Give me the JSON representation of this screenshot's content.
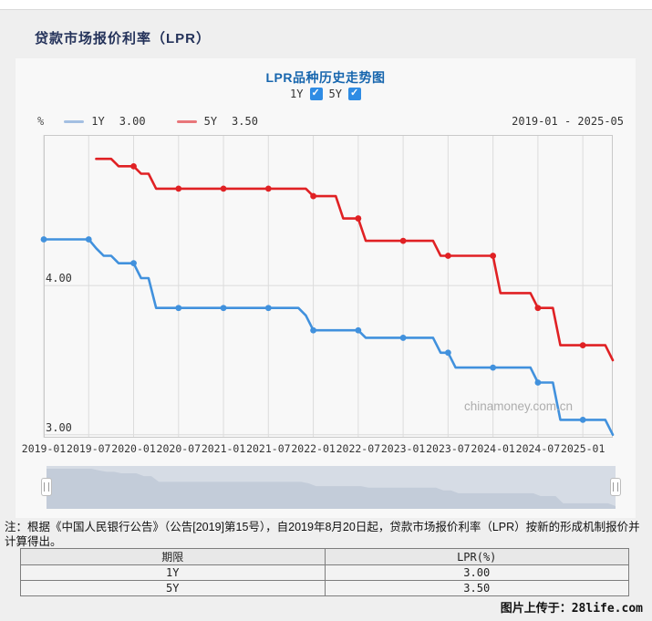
{
  "header": {
    "title": "贷款市场报价利率（LPR）"
  },
  "chart": {
    "title": "LPR品种历史走势图",
    "toggles": [
      {
        "label": "1Y",
        "checked": true
      },
      {
        "label": "5Y",
        "checked": true
      }
    ],
    "unit_label": "%",
    "legend": [
      {
        "name": "1Y",
        "value": "3.00",
        "swatch_color": "#a3bfe2"
      },
      {
        "name": "5Y",
        "value": "3.50",
        "swatch_color": "#e8767a"
      }
    ],
    "date_range": "2019-01 - 2025-05",
    "watermark": "chinamoney.com.cn"
  },
  "chart_data": {
    "type": "line",
    "title": "LPR品种历史走势图",
    "x_unit": "month",
    "x_start": "2019-01",
    "x_end": "2025-05",
    "x_tick_labels": [
      "2019-01",
      "2019-07",
      "2020-01",
      "2020-07",
      "2021-01",
      "2021-07",
      "2022-01",
      "2022-07",
      "2023-01",
      "2023-07",
      "2024-01",
      "2024-07",
      "2025-01"
    ],
    "y_tick_labels": [
      "4.00",
      "3.00"
    ],
    "y_gridline_values": [
      4.0,
      3.0
    ],
    "ylim": [
      2.98,
      5.01
    ],
    "marker_every_months": 6,
    "grid": true,
    "series": [
      {
        "name": "1Y",
        "color": "#4191dd",
        "start_month": "2019-01",
        "start_offset": 0,
        "monthly_values": [
          4.31,
          4.31,
          4.31,
          4.31,
          4.31,
          4.31,
          4.31,
          4.25,
          4.2,
          4.2,
          4.15,
          4.15,
          4.15,
          4.05,
          4.05,
          3.85,
          3.85,
          3.85,
          3.85,
          3.85,
          3.85,
          3.85,
          3.85,
          3.85,
          3.85,
          3.85,
          3.85,
          3.85,
          3.85,
          3.85,
          3.85,
          3.85,
          3.85,
          3.85,
          3.85,
          3.8,
          3.7,
          3.7,
          3.7,
          3.7,
          3.7,
          3.7,
          3.7,
          3.65,
          3.65,
          3.65,
          3.65,
          3.65,
          3.65,
          3.65,
          3.65,
          3.65,
          3.65,
          3.55,
          3.55,
          3.45,
          3.45,
          3.45,
          3.45,
          3.45,
          3.45,
          3.45,
          3.45,
          3.45,
          3.45,
          3.45,
          3.35,
          3.35,
          3.35,
          3.1,
          3.1,
          3.1,
          3.1,
          3.1,
          3.1,
          3.1,
          3.0
        ]
      },
      {
        "name": "5Y",
        "color": "#e02124",
        "start_month": "2019-08",
        "start_offset": 7,
        "monthly_values": [
          4.85,
          4.85,
          4.85,
          4.8,
          4.8,
          4.8,
          4.75,
          4.75,
          4.65,
          4.65,
          4.65,
          4.65,
          4.65,
          4.65,
          4.65,
          4.65,
          4.65,
          4.65,
          4.65,
          4.65,
          4.65,
          4.65,
          4.65,
          4.65,
          4.65,
          4.65,
          4.65,
          4.65,
          4.65,
          4.6,
          4.6,
          4.6,
          4.6,
          4.45,
          4.45,
          4.45,
          4.3,
          4.3,
          4.3,
          4.3,
          4.3,
          4.3,
          4.3,
          4.3,
          4.3,
          4.3,
          4.2,
          4.2,
          4.2,
          4.2,
          4.2,
          4.2,
          4.2,
          4.2,
          3.95,
          3.95,
          3.95,
          3.95,
          3.95,
          3.85,
          3.85,
          3.85,
          3.6,
          3.6,
          3.6,
          3.6,
          3.6,
          3.6,
          3.6,
          3.5
        ]
      }
    ]
  },
  "note": "注：根据《中国人民银行公告》（公告[2019]第15号），自2019年8月20日起，贷款市场报价利率（LPR）按新的形成机制报价并计算得出。",
  "table": {
    "headers": [
      "期限",
      "LPR(%)"
    ],
    "rows": [
      [
        "1Y",
        "3.00"
      ],
      [
        "5Y",
        "3.50"
      ]
    ]
  },
  "footer": {
    "credit": "图片上传于：28life.com"
  }
}
